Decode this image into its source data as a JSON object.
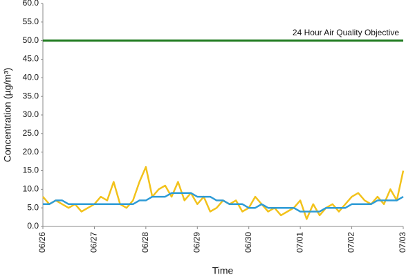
{
  "chart_data": {
    "type": "line",
    "x_label": "Time",
    "y_label": "Concentration (µg/m³)",
    "categories": [
      "06/26",
      null,
      null,
      null,
      null,
      null,
      null,
      null,
      "06/27",
      null,
      null,
      null,
      null,
      null,
      null,
      null,
      "06/28",
      null,
      null,
      null,
      null,
      null,
      null,
      null,
      "06/29",
      null,
      null,
      null,
      null,
      null,
      null,
      null,
      "06/30",
      null,
      null,
      null,
      null,
      null,
      null,
      null,
      "07/01",
      null,
      null,
      null,
      null,
      null,
      null,
      null,
      "07/02",
      null,
      null,
      null,
      null,
      null,
      null,
      null,
      "07/03"
    ],
    "series": [
      {
        "color": "#f2c21b",
        "values": [
          8,
          6,
          7,
          6,
          5,
          6,
          4,
          5,
          6,
          8,
          7,
          12,
          6,
          5,
          7,
          12,
          16,
          8,
          10,
          11,
          8,
          12,
          7,
          9,
          6,
          8,
          4,
          5,
          7,
          6,
          7,
          4,
          5,
          8,
          6,
          4,
          5,
          3,
          4,
          5,
          7,
          2,
          6,
          3,
          5,
          6,
          4,
          6,
          8,
          9,
          7,
          6,
          8,
          6,
          10,
          7,
          15
        ]
      },
      {
        "color": "#2e9bd6",
        "values": [
          6,
          6,
          7,
          7,
          6,
          6,
          6,
          6,
          6,
          6,
          6,
          6,
          6,
          6,
          6,
          7,
          7,
          8,
          8,
          8,
          9,
          9,
          9,
          9,
          8,
          8,
          8,
          7,
          7,
          6,
          6,
          6,
          5,
          5,
          6,
          5,
          5,
          5,
          5,
          5,
          4,
          4,
          4,
          4,
          5,
          5,
          5,
          5,
          6,
          6,
          6,
          6,
          7,
          7,
          7,
          7,
          8
        ]
      }
    ],
    "reference_line": {
      "value": 50,
      "label": "24 Hour Air Quality Objective",
      "color": "#1e7a1e"
    },
    "ylim": [
      0,
      60
    ],
    "yticks": [
      {
        "value": 0,
        "label": "0.0"
      },
      {
        "value": 5,
        "label": "5.0"
      },
      {
        "value": 10,
        "label": "10.0"
      },
      {
        "value": 15,
        "label": "15.0"
      },
      {
        "value": 20,
        "label": "20.0"
      },
      {
        "value": 25,
        "label": "25.0"
      },
      {
        "value": 30,
        "label": "30.0"
      },
      {
        "value": 35,
        "label": "35.0"
      },
      {
        "value": 40,
        "label": "40.0"
      },
      {
        "value": 45,
        "label": "45.0"
      },
      {
        "value": 50,
        "label": "50.0"
      },
      {
        "value": 55,
        "label": "55.0"
      },
      {
        "value": 60,
        "label": "60.0"
      }
    ],
    "grid": false
  }
}
